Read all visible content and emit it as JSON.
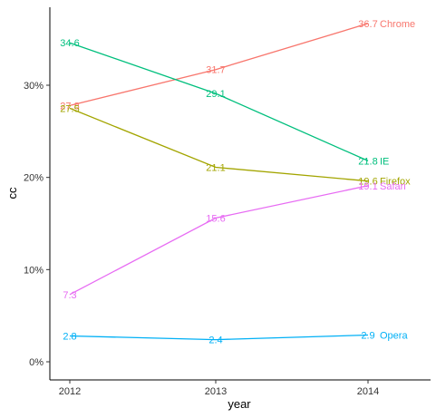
{
  "chart_data": {
    "type": "line",
    "xlabel": "year",
    "ylabel": "cc",
    "x": [
      "2012",
      "2013",
      "2014"
    ],
    "y_ticks": [
      "0%",
      "10%",
      "20%",
      "30%"
    ],
    "y_tick_values": [
      0,
      10,
      20,
      30
    ],
    "ylim": [
      -2,
      38
    ],
    "grid": false,
    "legend": "none (series labeled at line ends)",
    "series": [
      {
        "name": "Chrome",
        "color": "#F8766D",
        "values": [
          27.8,
          31.7,
          36.7
        ],
        "labels": [
          "27.8",
          "31.7",
          "36.7"
        ]
      },
      {
        "name": "IE",
        "color": "#00BF7D",
        "values": [
          34.6,
          29.1,
          21.8
        ],
        "labels": [
          "34.6",
          "29.1",
          "21.8"
        ]
      },
      {
        "name": "Firefox",
        "color": "#A3A500",
        "values": [
          27.5,
          21.1,
          19.6
        ],
        "labels": [
          "27.5",
          "21.1",
          "19.6"
        ]
      },
      {
        "name": "Safari",
        "color": "#E76BF3",
        "values": [
          7.3,
          15.6,
          19.1
        ],
        "labels": [
          "7.3",
          "15.6",
          "19.1"
        ]
      },
      {
        "name": "Opera",
        "color": "#00B0F6",
        "values": [
          2.8,
          2.4,
          2.9
        ],
        "labels": [
          "2.8",
          "2.4",
          "2.9"
        ]
      }
    ]
  }
}
